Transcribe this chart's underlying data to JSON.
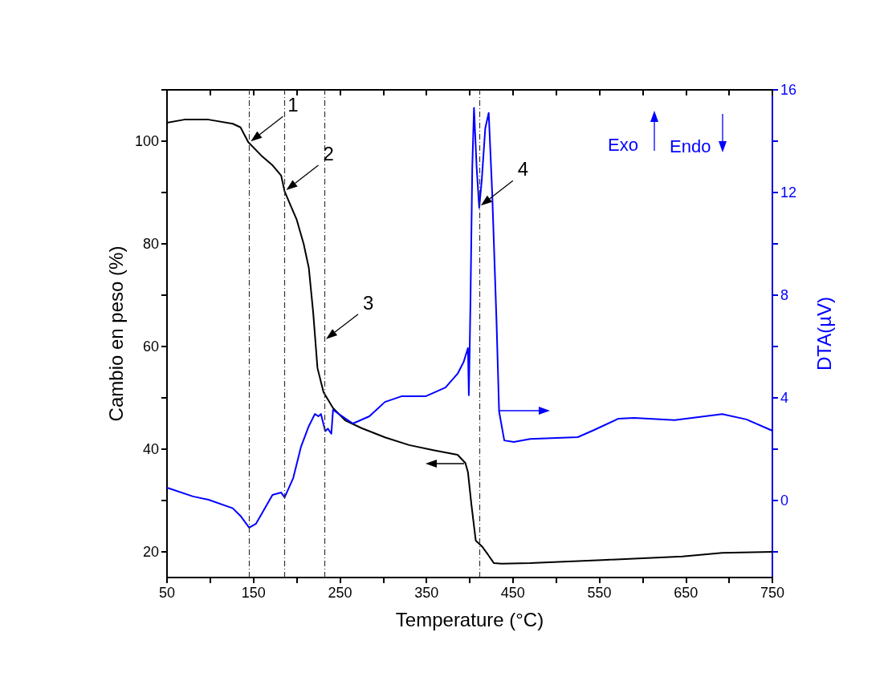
{
  "chart_data": {
    "type": "line",
    "xlabel": "Temperature (°C)",
    "ylabel": "Cambio en peso (%)",
    "y2label": "DTA(µV)",
    "xlim": [
      50,
      750
    ],
    "xticks": [
      50,
      {
        "value": 100,
        "label": null
      },
      150,
      {
        "value": 200,
        "label": null
      },
      250,
      {
        "value": 300,
        "label": null
      },
      350,
      {
        "value": 400,
        "label": null
      },
      450,
      {
        "value": 500,
        "label": null
      },
      550,
      {
        "value": 600,
        "label": null
      },
      650,
      {
        "value": 700,
        "label": null
      },
      750
    ],
    "ylim": [
      15,
      110
    ],
    "yticks": [
      20,
      {
        "value": 30,
        "label": null
      },
      40,
      {
        "value": 50,
        "label": null
      },
      60,
      {
        "value": 70,
        "label": null
      },
      80,
      {
        "value": 90,
        "label": null
      },
      100,
      {
        "value": 110,
        "label": null
      }
    ],
    "y2lim": [
      -3,
      16
    ],
    "y2ticks": [
      {
        "value": -2,
        "label": null
      },
      0,
      {
        "value": 2,
        "label": null
      },
      4,
      {
        "value": 6,
        "label": null
      },
      8,
      {
        "value": 10,
        "label": null
      },
      12,
      {
        "value": 14,
        "label": null
      },
      16
    ],
    "series": [
      {
        "color": "#000000",
        "x": [
          50,
          70,
          98,
          126,
          135,
          144,
          159,
          172,
          182,
          186,
          200,
          208,
          214,
          219,
          224,
          231,
          242,
          256,
          275,
          302,
          330,
          358,
          386,
          395,
          398,
          402,
          407,
          414,
          421,
          428,
          437,
          470,
          553,
          646,
          692,
          750
        ],
        "values": [
          103.6,
          104.2,
          104.2,
          103.4,
          102.7,
          99.8,
          97.2,
          95.3,
          93.3,
          90.2,
          84.7,
          80,
          75.3,
          66.7,
          55.8,
          51.1,
          48,
          45.6,
          44.1,
          42.3,
          40.8,
          39.8,
          38.9,
          37.3,
          35.5,
          29.2,
          22.2,
          21.1,
          19.5,
          17.8,
          17.7,
          17.8,
          18.4,
          19.1,
          19.8,
          20
        ]
      },
      {
        "color": "#0000ff",
        "axis": "y2",
        "x": [
          50,
          80,
          98,
          126,
          135,
          145,
          153,
          172,
          182,
          186,
          196,
          205,
          214,
          221,
          225,
          228,
          233,
          236,
          240,
          242,
          256,
          265,
          284,
          302,
          321,
          349,
          372,
          386,
          393,
          398,
          399,
          400,
          401,
          403,
          405,
          408,
          411,
          414,
          418,
          422,
          426,
          431,
          434,
          440,
          451,
          470,
          525,
          544,
          572,
          590,
          637,
          692,
          720,
          750
        ],
        "values": [
          0.5,
          0.16,
          0.03,
          -0.3,
          -0.6,
          -1.06,
          -0.9,
          0.22,
          0.31,
          0.12,
          0.88,
          2.1,
          2.9,
          3.37,
          3.28,
          3.37,
          2.7,
          2.8,
          2.6,
          3.53,
          3.2,
          3.0,
          3.28,
          3.84,
          4.06,
          4.06,
          4.4,
          4.94,
          5.4,
          5.94,
          4.1,
          5.9,
          8,
          13,
          15.3,
          13,
          11.4,
          12.5,
          14.5,
          15.1,
          12,
          7,
          3.47,
          2.34,
          2.28,
          2.4,
          2.47,
          2.75,
          3.19,
          3.22,
          3.13,
          3.37,
          3.16,
          2.72
        ]
      }
    ],
    "ref_lines": [
      {
        "axis": "x",
        "value": 145,
        "color": "#333333",
        "line_style": "dashed"
      },
      {
        "axis": "x",
        "value": 186,
        "color": "#333333",
        "line_style": "dashed"
      },
      {
        "axis": "x",
        "value": 232,
        "color": "#333333",
        "line_style": "dashed"
      },
      {
        "axis": "x",
        "value": 411,
        "color": "#333333",
        "line_style": "dashed"
      }
    ],
    "annotations": [
      {
        "text": "1",
        "x": 145,
        "y": 99.8
      },
      {
        "text": "2",
        "x": 186,
        "y": 90.3
      },
      {
        "text": "3",
        "x": 232,
        "y": 61.3
      },
      {
        "text": "4",
        "x": 411,
        "y": 87.3
      },
      "Exo",
      "Endo"
    ],
    "grid": false,
    "marker": "none",
    "line_style": "solid"
  }
}
